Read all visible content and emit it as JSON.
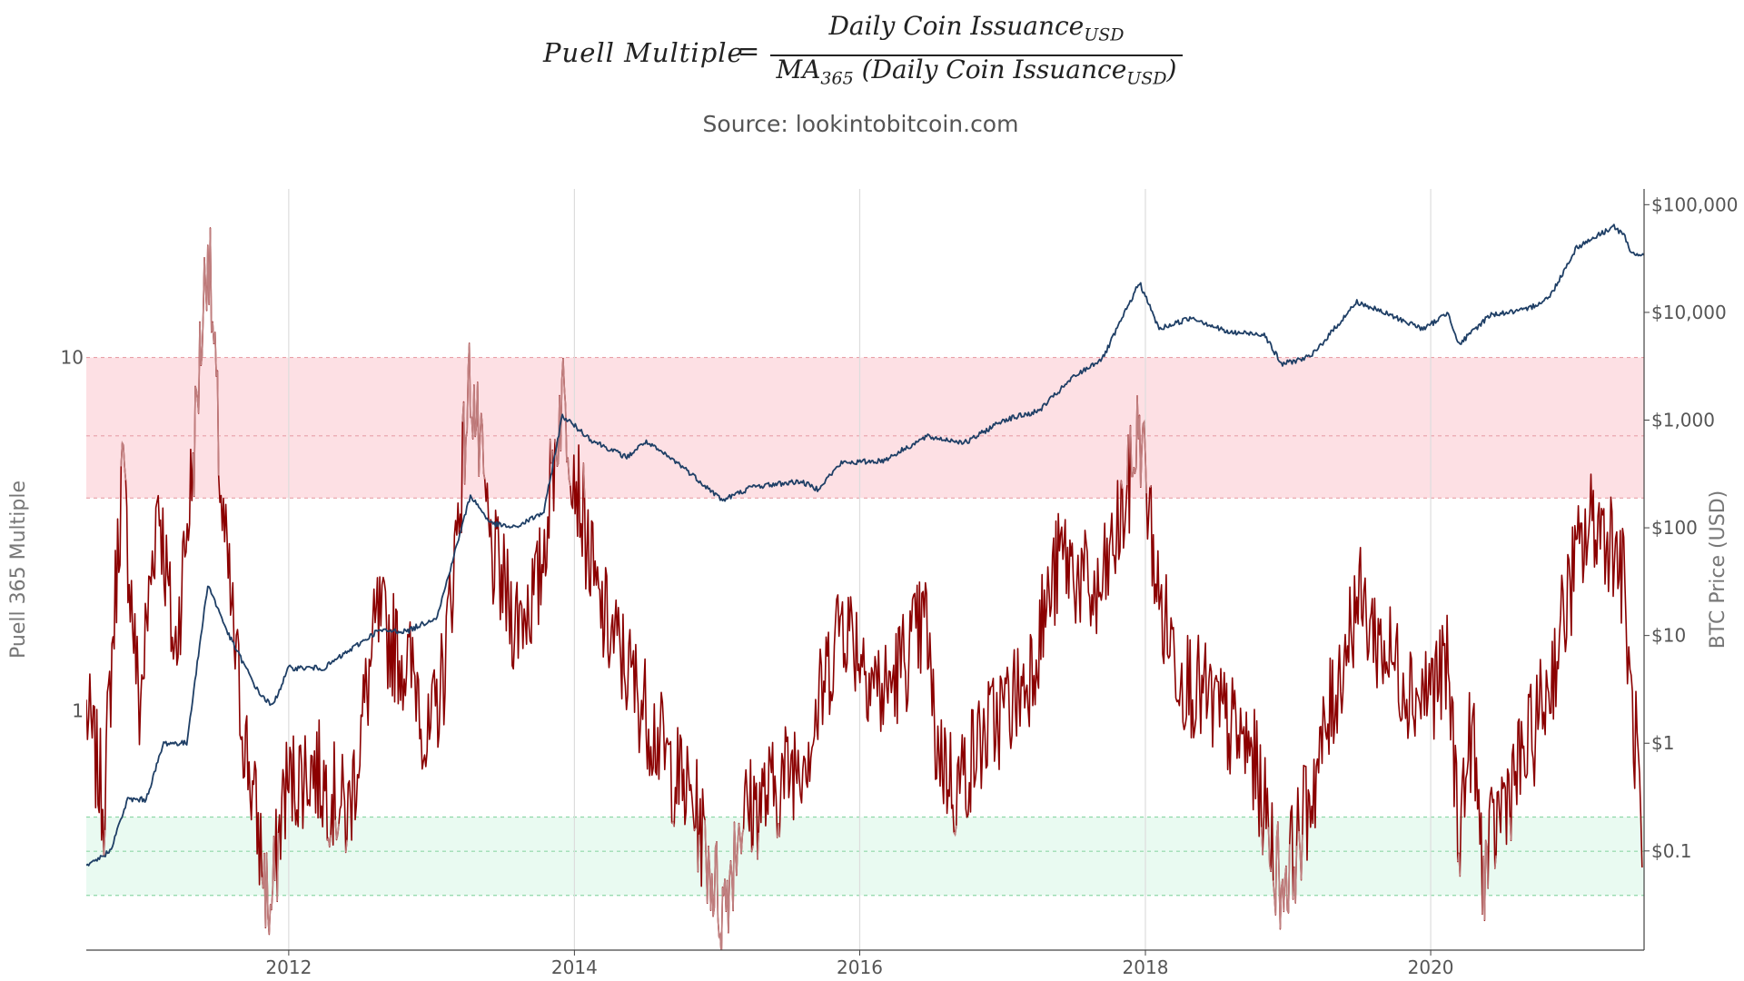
{
  "formula": {
    "lhs": "Puell Multiple",
    "equals": "=",
    "numerator": "Daily Coin Issuance",
    "numerator_sub": "USD",
    "denominator_prefix": "MA",
    "denominator_prefix_sub": "365",
    "denominator_mid": " (Daily Coin Issuance",
    "denominator_sub": "USD",
    "denominator_close": ")"
  },
  "source": "Source: lookintobitcoin.com",
  "chart_data": {
    "type": "line",
    "title": "",
    "xlabel": "",
    "ylabel_left": "Puell 365 Multiple",
    "ylabel_right": "BTC Price (USD)",
    "x_range": [
      "2010-08-01",
      "2021-06-30"
    ],
    "x_ticks": [
      "2012",
      "2014",
      "2016",
      "2018",
      "2020"
    ],
    "y_left": {
      "scale": "log",
      "range": [
        0.21,
        30
      ],
      "ticks": [
        {
          "value": 1,
          "label": "1"
        },
        {
          "value": 10,
          "label": "10"
        }
      ]
    },
    "y_right": {
      "scale": "log",
      "range": [
        0.012,
        140000
      ],
      "ticks": [
        {
          "value": 0.1,
          "label": "$0.1"
        },
        {
          "value": 1,
          "label": "$1"
        },
        {
          "value": 10,
          "label": "$10"
        },
        {
          "value": 100,
          "label": "$100"
        },
        {
          "value": 1000,
          "label": "$1,000"
        },
        {
          "value": 10000,
          "label": "$10,000"
        },
        {
          "value": 100000,
          "label": "$100,000"
        }
      ]
    },
    "bands": [
      {
        "name": "high",
        "axis": "left",
        "from": 4,
        "to": 10,
        "mid": 6,
        "color": "#fde0e4"
      },
      {
        "name": "low",
        "axis": "left",
        "from": 0.3,
        "to": 0.5,
        "mid": 0.4,
        "color": "#e9faf1"
      }
    ],
    "grid": true,
    "colors": {
      "puell": "#8b0000",
      "puell_faded": "#c08080",
      "price": "#1f3f66",
      "band_line": "#e8a0a8"
    },
    "series": [
      {
        "name": "",
        "axis": "left",
        "points": [
          [
            "2010-08-01",
            1.0
          ],
          [
            "2010-09-15",
            0.55
          ],
          [
            "2010-11-01",
            4.8
          ],
          [
            "2010-12-15",
            1.0
          ],
          [
            "2011-02-01",
            4.2
          ],
          [
            "2011-03-15",
            1.4
          ],
          [
            "2011-05-01",
            5.0
          ],
          [
            "2011-06-08",
            22.0
          ],
          [
            "2011-07-15",
            3.5
          ],
          [
            "2011-09-01",
            1.0
          ],
          [
            "2011-10-15",
            0.45
          ],
          [
            "2011-11-15",
            0.26
          ],
          [
            "2011-12-20",
            0.6
          ],
          [
            "2012-03-01",
            0.7
          ],
          [
            "2012-06-01",
            0.5
          ],
          [
            "2012-08-15",
            1.8
          ],
          [
            "2012-10-01",
            1.5
          ],
          [
            "2012-11-28",
            1.2
          ],
          [
            "2012-12-20",
            0.75
          ],
          [
            "2013-02-01",
            1.3
          ],
          [
            "2013-03-15",
            4.2
          ],
          [
            "2013-04-10",
            9.0
          ],
          [
            "2013-06-01",
            2.8
          ],
          [
            "2013-08-01",
            1.8
          ],
          [
            "2013-10-01",
            2.2
          ],
          [
            "2013-11-30",
            8.0
          ],
          [
            "2014-01-15",
            4.0
          ],
          [
            "2014-03-01",
            2.0
          ],
          [
            "2014-06-01",
            1.2
          ],
          [
            "2014-09-01",
            0.7
          ],
          [
            "2014-11-01",
            0.55
          ],
          [
            "2015-01-15",
            0.27
          ],
          [
            "2015-03-01",
            0.5
          ],
          [
            "2015-06-01",
            0.6
          ],
          [
            "2015-09-01",
            0.85
          ],
          [
            "2015-11-15",
            1.9
          ],
          [
            "2016-03-01",
            1.1
          ],
          [
            "2016-06-20",
            1.8
          ],
          [
            "2016-07-10",
            0.85
          ],
          [
            "2016-09-01",
            0.6
          ],
          [
            "2016-11-01",
            0.8
          ],
          [
            "2017-01-01",
            1.0
          ],
          [
            "2017-03-01",
            1.2
          ],
          [
            "2017-06-01",
            2.8
          ],
          [
            "2017-09-01",
            2.0
          ],
          [
            "2017-11-15",
            4.0
          ],
          [
            "2017-12-17",
            6.5
          ],
          [
            "2018-02-05",
            2.0
          ],
          [
            "2018-04-01",
            1.3
          ],
          [
            "2018-07-01",
            1.0
          ],
          [
            "2018-10-01",
            0.75
          ],
          [
            "2018-12-15",
            0.32
          ],
          [
            "2019-02-01",
            0.45
          ],
          [
            "2019-04-01",
            0.8
          ],
          [
            "2019-06-26",
            2.1
          ],
          [
            "2019-09-01",
            1.5
          ],
          [
            "2019-12-01",
            1.1
          ],
          [
            "2020-02-15",
            1.3
          ],
          [
            "2020-03-13",
            0.45
          ],
          [
            "2020-04-15",
            0.9
          ],
          [
            "2020-05-15",
            0.34
          ],
          [
            "2020-07-01",
            0.55
          ],
          [
            "2020-09-01",
            0.75
          ],
          [
            "2020-11-01",
            1.2
          ],
          [
            "2021-01-01",
            2.5
          ],
          [
            "2021-02-20",
            3.5
          ],
          [
            "2021-04-15",
            3.0
          ],
          [
            "2021-05-12",
            2.2
          ],
          [
            "2021-05-25",
            1.1
          ],
          [
            "2021-06-15",
            0.7
          ],
          [
            "2021-06-25",
            0.36
          ]
        ]
      },
      {
        "name": "",
        "axis": "right",
        "points": [
          [
            "2010-08-01",
            0.07
          ],
          [
            "2010-10-01",
            0.1
          ],
          [
            "2010-11-15",
            0.3
          ],
          [
            "2011-01-01",
            0.3
          ],
          [
            "2011-02-15",
            1.0
          ],
          [
            "2011-04-15",
            1.0
          ],
          [
            "2011-06-08",
            30.0
          ],
          [
            "2011-08-01",
            10.0
          ],
          [
            "2011-10-15",
            3.0
          ],
          [
            "2011-11-20",
            2.2
          ],
          [
            "2012-01-01",
            5.0
          ],
          [
            "2012-04-01",
            5.0
          ],
          [
            "2012-08-15",
            11.0
          ],
          [
            "2012-11-01",
            11.0
          ],
          [
            "2013-01-15",
            15.0
          ],
          [
            "2013-04-10",
            200.0
          ],
          [
            "2013-06-01",
            110.0
          ],
          [
            "2013-08-01",
            100.0
          ],
          [
            "2013-10-15",
            140.0
          ],
          [
            "2013-12-01",
            1100.0
          ],
          [
            "2014-02-15",
            650.0
          ],
          [
            "2014-05-15",
            450.0
          ],
          [
            "2014-07-01",
            630.0
          ],
          [
            "2014-10-01",
            380.0
          ],
          [
            "2015-01-15",
            180.0
          ],
          [
            "2015-04-01",
            240.0
          ],
          [
            "2015-08-01",
            270.0
          ],
          [
            "2015-09-15",
            230.0
          ],
          [
            "2015-11-15",
            400.0
          ],
          [
            "2016-03-01",
            420.0
          ],
          [
            "2016-06-20",
            700.0
          ],
          [
            "2016-10-01",
            620.0
          ],
          [
            "2017-01-01",
            1000.0
          ],
          [
            "2017-04-01",
            1200.0
          ],
          [
            "2017-07-01",
            2500.0
          ],
          [
            "2017-09-15",
            3800.0
          ],
          [
            "2017-12-17",
            19000.0
          ],
          [
            "2018-02-05",
            7000.0
          ],
          [
            "2018-05-01",
            9000.0
          ],
          [
            "2018-08-01",
            6500.0
          ],
          [
            "2018-11-01",
            6300.0
          ],
          [
            "2018-12-15",
            3300.0
          ],
          [
            "2019-03-01",
            3900.0
          ],
          [
            "2019-06-26",
            12500.0
          ],
          [
            "2019-09-01",
            10000.0
          ],
          [
            "2019-12-15",
            7000.0
          ],
          [
            "2020-02-15",
            10000.0
          ],
          [
            "2020-03-13",
            5000.0
          ],
          [
            "2020-06-01",
            9500.0
          ],
          [
            "2020-09-01",
            10500.0
          ],
          [
            "2020-11-01",
            14000.0
          ],
          [
            "2021-01-08",
            40000.0
          ],
          [
            "2021-04-14",
            63000.0
          ],
          [
            "2021-05-12",
            50000.0
          ],
          [
            "2021-05-25",
            36000.0
          ],
          [
            "2021-06-30",
            34000.0
          ]
        ]
      }
    ]
  }
}
